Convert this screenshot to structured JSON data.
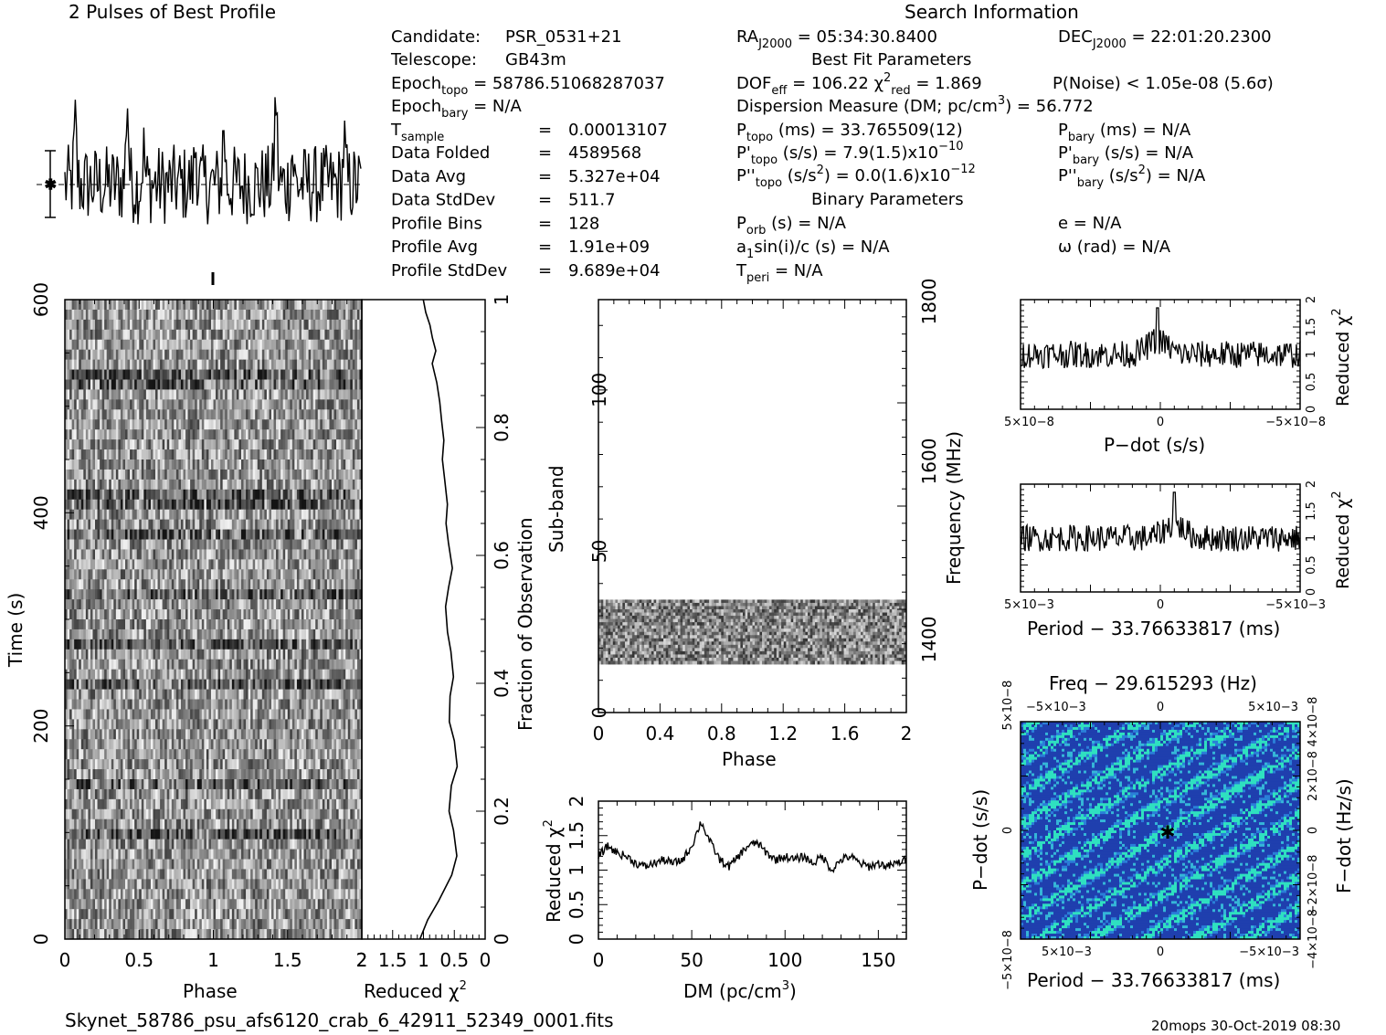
{
  "header": {
    "profile_title": "2 Pulses of Best Profile",
    "search_title": "Search Information",
    "best_fit_title": "Best Fit Parameters",
    "binary_title": "Binary Parameters"
  },
  "info_left": {
    "candidate_label": "Candidate:",
    "candidate": "PSR_0531+21",
    "telescope_label": "Telescope:",
    "telescope": "GB43m",
    "epoch_topo": "58786.51068287037",
    "epoch_bary": "N/A",
    "t_sample": "0.00013107",
    "rows": [
      {
        "label": "Data Folded",
        "value": "4589568"
      },
      {
        "label": "Data Avg",
        "value": "5.327e+04"
      },
      {
        "label": "Data StdDev",
        "value": "511.7"
      },
      {
        "label": "Profile Bins",
        "value": "128"
      },
      {
        "label": "Profile Avg",
        "value": "1.91e+09"
      },
      {
        "label": "Profile StdDev",
        "value": "9.689e+04"
      }
    ]
  },
  "info_mid": {
    "ra": "05:34:30.8400",
    "dec": "22:01:20.2300",
    "dof_eff": "106.22",
    "chi2_red": "1.869",
    "p_noise": "1.05e-08",
    "sigma": "5.6",
    "dm_label": "Dispersion Measure (DM; pc/cm",
    "dm_value": "56.772",
    "p_topo": "33.765509(12)",
    "p_bary": "N/A",
    "pd_topo": "7.9(1.5)x10",
    "pd_topo_exp": "−10",
    "pd_bary": "N/A",
    "pdd_topo": "0.0(1.6)x10",
    "pdd_topo_exp": "−12",
    "pdd_bary": "N/A",
    "p_orb": "N/A",
    "a1sini": "N/A",
    "t_peri": "N/A",
    "e": "N/A",
    "omega": "N/A"
  },
  "footer": {
    "filename": "Skynet_58786_psu_afs6120_crab_6_42911_52349_0001.fits",
    "stamp": "20mops 30-Oct-2019 08:30"
  },
  "colors": {
    "ink": "#000000",
    "background": "#ffffff",
    "contour_dark": "#1f3fae",
    "contour_mid": "#2a7fd8",
    "contour_light": "#2fe0c0"
  },
  "chart_data": [
    {
      "id": "profile",
      "type": "line",
      "title": "2 Pulses of Best Profile",
      "x": "phase 0–2 (256 bins)",
      "peaks_phase": [
        0.42,
        0.07,
        0.88,
        0.53
      ],
      "grid": false
    },
    {
      "id": "time_phase",
      "type": "heatmap",
      "xlabel": "Phase",
      "ylabel": "Time (s)",
      "xlim": [
        0,
        2
      ],
      "ylim": [
        0,
        600
      ],
      "xticks": [
        "0",
        "0.5",
        "1",
        "1.5",
        "2"
      ],
      "yticks": [
        "0",
        "200",
        "400",
        "600"
      ]
    },
    {
      "id": "time_chi2",
      "type": "line",
      "xlabel": "Reduced χ2",
      "xticks": [
        "2",
        "1.5",
        "1",
        "0.5",
        "0"
      ],
      "right_label": "Fraction of Observation",
      "right_ticks": [
        "0",
        "0.2",
        "0.4",
        "0.6",
        "0.8",
        "1"
      ],
      "x": [
        1.05,
        0.95,
        0.75,
        0.55,
        0.45,
        0.5,
        0.6,
        0.55,
        0.45,
        0.5,
        0.6,
        0.55,
        0.5,
        0.55,
        0.6,
        0.65,
        0.6,
        0.55,
        0.6,
        0.65,
        0.6,
        0.65,
        0.7,
        0.65,
        0.7,
        0.75,
        0.8,
        0.85,
        0.8,
        0.85,
        0.9,
        0.95,
        1.0
      ],
      "y_fraction": [
        0.0,
        0.03,
        0.06,
        0.1,
        0.13,
        0.17,
        0.2,
        0.24,
        0.27,
        0.31,
        0.34,
        0.38,
        0.41,
        0.45,
        0.48,
        0.52,
        0.55,
        0.58,
        0.62,
        0.65,
        0.68,
        0.72,
        0.75,
        0.78,
        0.81,
        0.84,
        0.87,
        0.9,
        0.92,
        0.94,
        0.96,
        0.98,
        1.0
      ]
    },
    {
      "id": "subband_phase",
      "type": "heatmap",
      "xlabel": "Phase",
      "ylabel": "Sub-band",
      "right_label": "Frequency (MHz)",
      "xlim": [
        0,
        2
      ],
      "ylim": [
        0,
        128
      ],
      "xticks": [
        "0",
        "0.4",
        "0.8",
        "1.2",
        "1.6",
        "2"
      ],
      "yticks": [
        "0",
        "50",
        "100"
      ],
      "right_ticks": [
        "1400",
        "1600",
        "1800"
      ],
      "filled_band_subbands": [
        15,
        35
      ]
    },
    {
      "id": "dm_chi2",
      "type": "line",
      "xlabel": "DM (pc/cm3)",
      "ylabel": "Reduced χ2",
      "xlim": [
        0,
        165
      ],
      "ylim": [
        0,
        2
      ],
      "xticks": [
        "0",
        "50",
        "100",
        "150"
      ],
      "yticks": [
        "0",
        "0.5",
        "1",
        "1.5",
        "2"
      ],
      "x": [
        0,
        5,
        10,
        15,
        20,
        25,
        30,
        35,
        40,
        45,
        50,
        55,
        60,
        65,
        70,
        75,
        80,
        85,
        90,
        95,
        100,
        105,
        110,
        115,
        120,
        125,
        130,
        135,
        140,
        145,
        150,
        155,
        160,
        165
      ],
      "y": [
        1.2,
        1.35,
        1.25,
        1.2,
        1.1,
        1.05,
        1.1,
        1.15,
        1.1,
        1.15,
        1.35,
        1.7,
        1.4,
        1.15,
        1.05,
        1.2,
        1.35,
        1.4,
        1.25,
        1.15,
        1.2,
        1.15,
        1.2,
        1.1,
        1.2,
        1.0,
        1.15,
        1.2,
        1.1,
        1.05,
        1.1,
        1.05,
        1.1,
        1.15
      ]
    },
    {
      "id": "pdot_chi2",
      "type": "line",
      "xlabel": "P−dot (s/s)",
      "ylabel": "Reduced χ2",
      "ylim": [
        0,
        2
      ],
      "xticks": [
        "5×10−8",
        "0",
        "−5×10−8"
      ],
      "yticks": [
        "0",
        "0.5",
        "1",
        "1.5",
        "2"
      ],
      "peak": {
        "x_fraction": 0.49,
        "y": 1.85
      }
    },
    {
      "id": "period_chi2",
      "type": "line",
      "xlabel": "Period − 33.76633817 (ms)",
      "ylabel": "Reduced χ2",
      "ylim": [
        0,
        2
      ],
      "xticks": [
        "5×10−3",
        "0",
        "−5×10−3"
      ],
      "yticks": [
        "0",
        "0.5",
        "1",
        "1.5",
        "2"
      ],
      "peak": {
        "x_fraction": 0.55,
        "y": 1.85
      }
    },
    {
      "id": "period_pdot_map",
      "type": "heatmap",
      "title": "Freq − 29.615293 (Hz)",
      "xlabel": "Period − 33.76633817 (ms)",
      "ylabel": "P−dot (s/s)",
      "right_label": "F−dot (Hz/s)",
      "xticks": [
        "5×10−3",
        "0",
        "−5×10−3"
      ],
      "top_ticks": [
        "−5×10−3",
        "0",
        "5×10−3"
      ],
      "yticks": [
        "5×10−8",
        "0",
        "−5×10−8"
      ],
      "right_ticks": [
        "−4×10−8",
        "−2×10−8",
        "0",
        "2×10−8",
        "4×10−8"
      ]
    }
  ]
}
